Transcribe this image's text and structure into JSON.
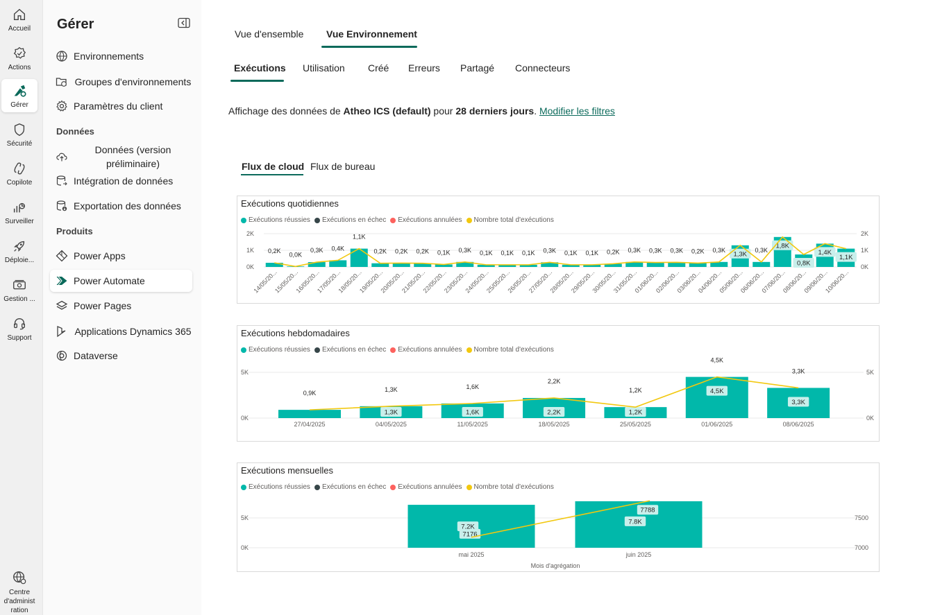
{
  "rail": [
    {
      "label": "Accueil",
      "icon": "home-icon"
    },
    {
      "label": "Actions",
      "icon": "actions-icon"
    },
    {
      "label": "Gérer",
      "icon": "manage-icon",
      "active": true
    },
    {
      "label": "Sécurité",
      "icon": "shield-icon"
    },
    {
      "label": "Copilote",
      "icon": "copilot-icon"
    },
    {
      "label": "Surveiller",
      "icon": "monitor-icon"
    },
    {
      "label": "Déploie...",
      "icon": "rocket-icon"
    },
    {
      "label": "Gestion ...",
      "icon": "billing-icon"
    },
    {
      "label": "Support",
      "icon": "headset-icon"
    }
  ],
  "rail_bottom": {
    "label_lines": [
      "Centre",
      "d'administ",
      "ration"
    ],
    "icon": "globe-admin-icon"
  },
  "nav": {
    "title": "Gérer",
    "items": [
      {
        "label": "Environnements",
        "icon": "globe-icon"
      },
      {
        "label": "Groupes d'environnements",
        "icon": "folder-globe-icon"
      },
      {
        "label": "Paramètres du client",
        "icon": "gear-icon"
      },
      {
        "label": "Données (version préliminaire)",
        "icon": "cloud-upload-icon"
      },
      {
        "label": "Intégration de données",
        "icon": "database-icon"
      },
      {
        "label": "Exportation des données",
        "icon": "database-export-icon"
      },
      {
        "label": "Power Apps",
        "icon": "power-apps-icon"
      },
      {
        "label": "Power Automate",
        "icon": "power-automate-icon",
        "active": true
      },
      {
        "label": "Power Pages",
        "icon": "power-pages-icon"
      },
      {
        "label": "Applications Dynamics 365",
        "icon": "dynamics-icon"
      },
      {
        "label": "Dataverse",
        "icon": "dataverse-icon"
      }
    ],
    "sections": [
      "Données",
      "Produits"
    ]
  },
  "tabs": [
    "Vue d'ensemble",
    "Vue Environnement"
  ],
  "subtabs": [
    "Exécutions",
    "Utilisation",
    "Créé",
    "Erreurs",
    "Partagé",
    "Connecteurs"
  ],
  "info": {
    "prefix": "Affichage des données de ",
    "env": "Atheo ICS (default)",
    "middle": " pour ",
    "period": "28 derniers jours",
    "suffix": ". ",
    "link": "Modifier les filtres"
  },
  "flow_tabs": [
    "Flux de cloud",
    "Flux de bureau"
  ],
  "legend": [
    {
      "label": "Exécutions réussies",
      "color": "#01b8aa"
    },
    {
      "label": "Exécutions en échec",
      "color": "#374649"
    },
    {
      "label": "Exécutions annulées",
      "color": "#fd625e"
    },
    {
      "label": "Nombre total d'exécutions",
      "color": "#f2c80f"
    }
  ],
  "chart_data": [
    {
      "type": "bar",
      "title": "Exécutions quotidiennes",
      "categories": [
        "14/05/20...",
        "15/05/20...",
        "16/05/20...",
        "17/05/20...",
        "18/05/20...",
        "19/05/20...",
        "20/05/20...",
        "21/05/20...",
        "22/05/20...",
        "23/05/20...",
        "24/05/20...",
        "25/05/20...",
        "26/05/20...",
        "27/05/20...",
        "28/05/20...",
        "29/05/20...",
        "30/05/20...",
        "31/05/20...",
        "01/06/20...",
        "02/06/20...",
        "03/06/20...",
        "04/06/20...",
        "05/06/20...",
        "06/06/20...",
        "07/06/20...",
        "08/06/20...",
        "09/06/20...",
        "10/06/20..."
      ],
      "series": [
        {
          "name": "Exécutions réussies",
          "values": [
            250,
            30,
            290,
            400,
            1100,
            220,
            230,
            220,
            150,
            300,
            130,
            130,
            130,
            280,
            130,
            130,
            190,
            300,
            270,
            280,
            230,
            300,
            1300,
            300,
            1800,
            750,
            1400,
            1100
          ]
        },
        {
          "name": "Nombre total d'exécutions",
          "values": [
            250,
            30,
            290,
            400,
            1100,
            220,
            230,
            220,
            150,
            300,
            130,
            130,
            130,
            280,
            130,
            130,
            190,
            300,
            270,
            280,
            230,
            300,
            1300,
            300,
            1800,
            750,
            1400,
            1100
          ]
        }
      ],
      "labels_top": [
        "0,2K",
        "0,0K",
        "0,3K",
        "0,4K",
        "1,1K",
        "0,2K",
        "0,2K",
        "0,2K",
        "0,1K",
        "0,3K",
        "0,1K",
        "0,1K",
        "0,1K",
        "0,3K",
        "0,1K",
        "0,1K",
        "0,2K",
        "0,3K",
        "0,3K",
        "0,3K",
        "0,2K",
        "0,3K",
        "",
        "0,3K",
        "",
        "",
        "",
        ""
      ],
      "labels_inside": {
        "22": "1,3K",
        "24": "1,8K",
        "25": "0,8K",
        "26": "1,4K",
        "27": "1,1K"
      },
      "y_ticks": [
        "0K",
        "1K",
        "2K"
      ],
      "ylim": [
        0,
        2000
      ]
    },
    {
      "type": "bar",
      "title": "Exécutions hebdomadaires",
      "categories": [
        "27/04/2025",
        "04/05/2025",
        "11/05/2025",
        "18/05/2025",
        "25/05/2025",
        "01/06/2025",
        "08/06/2025"
      ],
      "series": [
        {
          "name": "Exécutions réussies",
          "values": [
            900,
            1300,
            1600,
            2200,
            1200,
            4500,
            3300
          ]
        },
        {
          "name": "Nombre total d'exécutions",
          "values": [
            900,
            1300,
            1600,
            2200,
            1200,
            4500,
            3300
          ]
        }
      ],
      "labels_top": [
        "0,9K",
        "1,3K",
        "1,6K",
        "2,2K",
        "1,2K",
        "4,5K",
        "3,3K"
      ],
      "labels_inside": [
        "",
        "1,3K",
        "1,6K",
        "2,2K",
        "1,2K",
        "4,5K",
        "3,3K"
      ],
      "y_ticks": [
        "0K",
        "5K"
      ],
      "ylim": [
        0,
        5000
      ]
    },
    {
      "type": "bar",
      "title": "Exécutions mensuelles",
      "categories": [
        "mai 2025",
        "juin 2025"
      ],
      "xlabel": "Mois d'agrégation",
      "series": [
        {
          "name": "Exécutions réussies",
          "values": [
            7200,
            7800
          ]
        },
        {
          "name": "Nombre total d'exécutions",
          "values": [
            7176,
            7788
          ]
        }
      ],
      "labels_inside": [
        "7,2K",
        "7.8K"
      ],
      "line_labels": [
        "7176",
        "7788"
      ],
      "y_ticks_left": [
        "0K",
        "5K"
      ],
      "y_ticks_right": [
        "7000",
        "7500"
      ],
      "ylim": [
        0,
        7800
      ],
      "y2lim": [
        7000,
        7800
      ]
    }
  ]
}
